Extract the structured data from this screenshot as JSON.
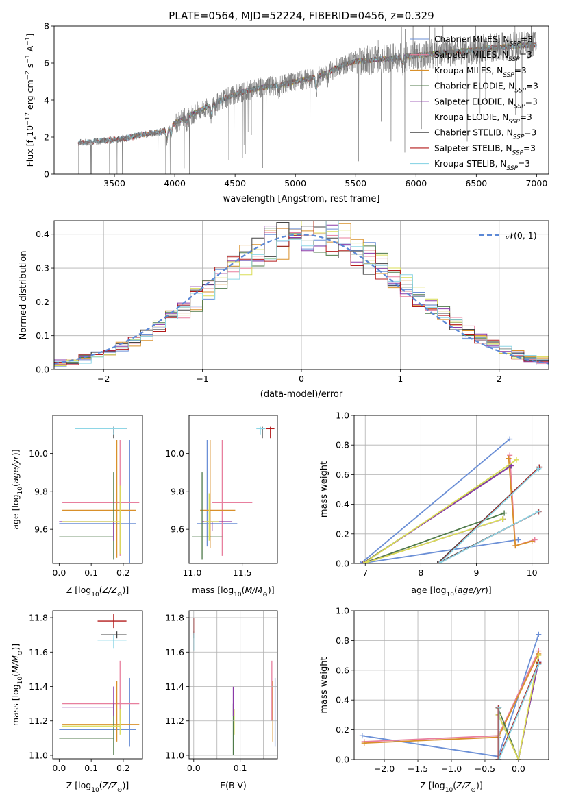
{
  "title": "PLATE=0564, MJD=52224, FIBERID=0456, z=0.329",
  "colors": {
    "Chabrier MILES": "#6b8fd6",
    "Salpeter MILES": "#e87f9e",
    "Kroupa MILES": "#d9902a",
    "Chabrier ELODIE": "#4f7a4a",
    "Salpeter ELODIE": "#8a3aa8",
    "Kroupa ELODIE": "#d9dd56",
    "Chabrier STELIB": "#444444",
    "Salpeter STELIB": "#b31b1b",
    "Kroupa STELIB": "#8ed6e6",
    "orange": "#e06a2c",
    "gauss": "#5b88d6"
  },
  "chart_data": [
    {
      "type": "line",
      "title": "PLATE=0564, MJD=52224, FIBERID=0456, z=0.329",
      "xlabel": "wavelength [Angstrom, rest frame]",
      "ylabel": "Flux [f_λ 10^-17 erg cm^-2 s^-1 A^-1]",
      "xlim": [
        3000,
        7100
      ],
      "ylim": [
        0,
        8
      ],
      "xticks": [
        "3500",
        "4000",
        "4500",
        "5000",
        "5500",
        "6000",
        "6500",
        "7000"
      ],
      "yticks": [
        "0",
        "2",
        "4",
        "6",
        "8"
      ],
      "legend_position": "upper-right",
      "legend": [
        {
          "model": "Chabrier MILES",
          "label": "Chabrier MILES, N",
          "sub": "SSP",
          "tail": "=3"
        },
        {
          "model": "Salpeter MILES",
          "label": "Salpeter MILES, N",
          "sub": "SSP",
          "tail": "=3"
        },
        {
          "model": "Kroupa MILES",
          "label": "Kroupa MILES, N",
          "sub": "SSP",
          "tail": "=3"
        },
        {
          "model": "Chabrier ELODIE",
          "label": "Chabrier ELODIE, N",
          "sub": "SSP",
          "tail": "=3"
        },
        {
          "model": "Salpeter ELODIE",
          "label": "Salpeter ELODIE, N",
          "sub": "SSP",
          "tail": "=3"
        },
        {
          "model": "Kroupa ELODIE",
          "label": "Kroupa ELODIE, N",
          "sub": "SSP",
          "tail": "=3"
        },
        {
          "model": "Chabrier STELIB",
          "label": "Chabrier STELIB, N",
          "sub": "SSP",
          "tail": "=3"
        },
        {
          "model": "Salpeter STELIB",
          "label": "Salpeter STELIB, N",
          "sub": "SSP",
          "tail": "=3"
        },
        {
          "model": "Kroupa STELIB",
          "label": "Kroupa STELIB, N",
          "sub": "SSP",
          "tail": "=3"
        }
      ],
      "data_trend": {
        "x": [
          3200,
          3300,
          3400,
          3500,
          3600,
          3700,
          3800,
          3900,
          4000,
          4100,
          4200,
          4300,
          4400,
          4500,
          4600,
          4700,
          4800,
          4900,
          5000,
          5100,
          5200,
          5300,
          5400,
          5500,
          5600,
          5700,
          5800,
          5900,
          6000,
          6200,
          6400,
          6600,
          6800,
          7000
        ],
        "y": [
          1.7,
          1.75,
          1.8,
          1.85,
          1.95,
          2.1,
          2.2,
          2.3,
          2.75,
          3.1,
          3.4,
          3.75,
          4.05,
          4.3,
          4.5,
          4.65,
          4.75,
          4.85,
          5.0,
          5.15,
          5.3,
          5.6,
          5.9,
          6.1,
          6.15,
          6.2,
          6.25,
          6.35,
          6.4,
          6.55,
          6.65,
          6.8,
          6.9,
          7.0
        ]
      },
      "model_start": {
        "Chabrier MILES": 3540,
        "Salpeter MILES": 3540,
        "Kroupa MILES": 3540,
        "Chabrier ELODIE": 3920,
        "Salpeter ELODIE": 3920,
        "Kroupa ELODIE": 3920,
        "Chabrier STELIB": 3200,
        "Salpeter STELIB": 3200,
        "Kroupa STELIB": 3200
      }
    },
    {
      "type": "step",
      "xlabel": "(data-model)/error",
      "ylabel": "Normed distribution",
      "xlim": [
        -2.5,
        2.5
      ],
      "ylim": [
        0,
        0.44
      ],
      "xticks": [
        "-2",
        "-1",
        "0",
        "1",
        "2"
      ],
      "yticks": [
        "0.0",
        "0.1",
        "0.2",
        "0.3",
        "0.4"
      ],
      "grid": true,
      "legend_position": "upper-right",
      "gauss_label": "𝒩(0, 1)",
      "bins": 40
    },
    {
      "type": "errorbar",
      "xlabel": "Z [log10(Z/Z⊙)]",
      "ylabel": "age  [log10(age/yr)]",
      "xlim": [
        -0.02,
        0.26
      ],
      "ylim": [
        9.42,
        10.2
      ],
      "xticks": [
        "0.0",
        "0.1",
        "0.2"
      ],
      "yticks": [
        "9.6",
        "9.8",
        "10.0"
      ],
      "points": [
        {
          "model": "Chabrier MILES",
          "x": 0.22,
          "xerr": [
            0.22,
            0.02
          ],
          "y": 9.63,
          "yerr": [
            0.25,
            0.44
          ]
        },
        {
          "model": "Salpeter MILES",
          "x": 0.19,
          "xerr": [
            0.18,
            0.06
          ],
          "y": 9.74,
          "yerr": [
            0.28,
            0.33
          ]
        },
        {
          "model": "Kroupa MILES",
          "x": 0.18,
          "xerr": [
            0.17,
            0.06
          ],
          "y": 9.7,
          "yerr": [
            0.25,
            0.37
          ]
        },
        {
          "model": "Chabrier ELODIE",
          "x": 0.17,
          "xerr": [
            0.17,
            0.0
          ],
          "y": 9.56,
          "yerr": [
            0.12,
            0.34
          ]
        },
        {
          "model": "Salpeter ELODIE",
          "x": 0.17,
          "xerr": [
            0.17,
            0.0
          ],
          "y": 9.64,
          "yerr": [
            0.1,
            0.0
          ]
        },
        {
          "model": "Kroupa ELODIE",
          "x": 0.19,
          "xerr": [
            0.18,
            0.0
          ],
          "y": 9.64,
          "yerr": [
            0.17,
            0.19
          ]
        },
        {
          "model": "Chabrier STELIB",
          "x": 0.17,
          "xerr": [
            0.12,
            0.04
          ],
          "y": 10.13,
          "yerr": [
            0.05,
            0.01
          ]
        },
        {
          "model": "Salpeter STELIB",
          "x": 0.17,
          "xerr": [
            0.12,
            0.04
          ],
          "y": 10.13,
          "yerr": [
            0.02,
            0.01
          ]
        },
        {
          "model": "Kroupa STELIB",
          "x": 0.17,
          "xerr": [
            0.12,
            0.04
          ],
          "y": 10.13,
          "yerr": [
            0.03,
            0.01
          ]
        }
      ]
    },
    {
      "type": "errorbar",
      "xlabel": "mass [log10(M/M⊙)]",
      "xlim": [
        10.97,
        11.85
      ],
      "ylim": [
        9.42,
        10.2
      ],
      "xticks": [
        "11.0",
        "11.5"
      ],
      "yticks": [
        "9.6",
        "9.8",
        "10.0"
      ],
      "points": [
        {
          "model": "Chabrier MILES",
          "x": 11.15,
          "xerr": [
            0.1,
            0.3
          ],
          "y": 9.63,
          "yerr": [
            0.12,
            0.44
          ]
        },
        {
          "model": "Salpeter MILES",
          "x": 11.3,
          "xerr": [
            0.1,
            0.3
          ],
          "y": 9.74,
          "yerr": [
            0.28,
            0.33
          ]
        },
        {
          "model": "Kroupa MILES",
          "x": 11.18,
          "xerr": [
            0.1,
            0.25
          ],
          "y": 9.7,
          "yerr": [
            0.2,
            0.37
          ]
        },
        {
          "model": "Chabrier ELODIE",
          "x": 11.1,
          "xerr": [
            0.1,
            0.2
          ],
          "y": 9.56,
          "yerr": [
            0.12,
            0.34
          ]
        },
        {
          "model": "Salpeter ELODIE",
          "x": 11.2,
          "xerr": [
            0.1,
            0.2
          ],
          "y": 9.64,
          "yerr": [
            0.05,
            0.0
          ]
        },
        {
          "model": "Kroupa ELODIE",
          "x": 11.17,
          "xerr": [
            0.05,
            0.1
          ],
          "y": 9.64,
          "yerr": [
            0.1,
            0.15
          ]
        },
        {
          "model": "Chabrier STELIB",
          "x": 11.7,
          "xerr": [
            0.02,
            0.02
          ],
          "y": 10.13,
          "yerr": [
            0.05,
            0.01
          ]
        },
        {
          "model": "Salpeter STELIB",
          "x": 11.78,
          "xerr": [
            0.04,
            0.04
          ],
          "y": 10.13,
          "yerr": [
            0.05,
            0.01
          ]
        },
        {
          "model": "Kroupa STELIB",
          "x": 11.68,
          "xerr": [
            0.04,
            0.05
          ],
          "y": 10.13,
          "yerr": [
            0.03,
            0.01
          ]
        }
      ]
    },
    {
      "type": "line",
      "xlabel": "age  [log10(age/yr)]",
      "ylabel": "mass weight",
      "xlim": [
        6.8,
        10.3
      ],
      "ylim": [
        0,
        1
      ],
      "xticks": [
        "7",
        "8",
        "9",
        "10"
      ],
      "yticks": [
        "0.0",
        "0.2",
        "0.4",
        "0.6",
        "0.8",
        "1.0"
      ],
      "grid": true,
      "series": [
        {
          "model": "Chabrier MILES",
          "x": [
            9.6,
            6.92,
            9.75
          ],
          "y": [
            0.84,
            0.0,
            0.16
          ]
        },
        {
          "model": "Salpeter MILES",
          "x": [
            9.6,
            9.7,
            10.05
          ],
          "y": [
            0.73,
            0.12,
            0.16
          ]
        },
        {
          "model": "Kroupa MILES",
          "x": [
            9.58,
            9.7,
            10.0
          ],
          "y": [
            0.71,
            0.12,
            0.15
          ]
        },
        {
          "model": "Chabrier ELODIE",
          "x": [
            9.62,
            6.95,
            9.5
          ],
          "y": [
            0.66,
            0.0,
            0.34
          ]
        },
        {
          "model": "Salpeter ELODIE",
          "x": [
            9.63,
            6.96,
            9.48
          ],
          "y": [
            0.66,
            0.0,
            0.3
          ]
        },
        {
          "model": "Kroupa ELODIE",
          "x": [
            9.72,
            6.97,
            9.47
          ],
          "y": [
            0.7,
            0.0,
            0.3
          ]
        },
        {
          "model": "Chabrier STELIB",
          "x": [
            10.13,
            8.3,
            10.12
          ],
          "y": [
            0.65,
            0.0,
            0.35
          ]
        },
        {
          "model": "Salpeter STELIB",
          "x": [
            10.13,
            8.32,
            10.12
          ],
          "y": [
            0.65,
            0.0,
            0.35
          ]
        },
        {
          "model": "Kroupa STELIB",
          "x": [
            10.12,
            8.33,
            10.11
          ],
          "y": [
            0.64,
            0.0,
            0.35
          ]
        }
      ]
    },
    {
      "type": "errorbar",
      "xlabel": "Z [log10(Z/Z⊙)]",
      "ylabel": "mass [log10(M/M⊙)]",
      "xlim": [
        -0.02,
        0.26
      ],
      "ylim": [
        10.98,
        11.84
      ],
      "xticks": [
        "0.0",
        "0.1",
        "0.2"
      ],
      "yticks": [
        "11.0",
        "11.2",
        "11.4",
        "11.6",
        "11.8"
      ],
      "points": [
        {
          "model": "Chabrier MILES",
          "x": 0.22,
          "xerr": [
            0.22,
            0.02
          ],
          "y": 11.15,
          "yerr": [
            0.1,
            0.3
          ]
        },
        {
          "model": "Salpeter MILES",
          "x": 0.19,
          "xerr": [
            0.18,
            0.06
          ],
          "y": 11.3,
          "yerr": [
            0.1,
            0.25
          ]
        },
        {
          "model": "Kroupa MILES",
          "x": 0.18,
          "xerr": [
            0.17,
            0.07
          ],
          "y": 11.18,
          "yerr": [
            0.1,
            0.25
          ]
        },
        {
          "model": "Chabrier ELODIE",
          "x": 0.17,
          "xerr": [
            0.17,
            0.0
          ],
          "y": 11.1,
          "yerr": [
            0.1,
            0.2
          ]
        },
        {
          "model": "Salpeter ELODIE",
          "x": 0.17,
          "xerr": [
            0.16,
            0.0
          ],
          "y": 11.28,
          "yerr": [
            0.05,
            0.12
          ]
        },
        {
          "model": "Kroupa ELODIE",
          "x": 0.19,
          "xerr": [
            0.18,
            0.0
          ],
          "y": 11.17,
          "yerr": [
            0.05,
            0.1
          ]
        },
        {
          "model": "Chabrier STELIB",
          "x": 0.18,
          "xerr": [
            0.05,
            0.03
          ],
          "y": 11.7,
          "yerr": [
            0.02,
            0.02
          ]
        },
        {
          "model": "Salpeter STELIB",
          "x": 0.17,
          "xerr": [
            0.05,
            0.04
          ],
          "y": 11.78,
          "yerr": [
            0.04,
            0.04
          ]
        },
        {
          "model": "Kroupa STELIB",
          "x": 0.17,
          "xerr": [
            0.05,
            0.04
          ],
          "y": 11.67,
          "yerr": [
            0.05,
            0.03
          ]
        }
      ]
    },
    {
      "type": "errorbar",
      "xlabel": "E(B-V)",
      "xlim": [
        -0.01,
        0.18
      ],
      "ylim": [
        10.98,
        11.84
      ],
      "xticks": [
        "0.0",
        "0.1"
      ],
      "yticks": [
        "11.0",
        "11.2",
        "11.4",
        "11.6",
        "11.8"
      ],
      "points": [
        {
          "model": "Chabrier MILES",
          "x": 0.175,
          "y": 11.15,
          "yerr": [
            0.1,
            0.3
          ]
        },
        {
          "model": "Salpeter MILES",
          "x": 0.168,
          "y": 11.3,
          "yerr": [
            0.1,
            0.25
          ]
        },
        {
          "model": "Kroupa MILES",
          "x": 0.17,
          "y": 11.18,
          "yerr": [
            0.1,
            0.25
          ]
        },
        {
          "model": "Chabrier ELODIE",
          "x": 0.085,
          "y": 11.1,
          "yerr": [
            0.1,
            0.2
          ]
        },
        {
          "model": "Salpeter ELODIE",
          "x": 0.085,
          "y": 11.28,
          "yerr": [
            0.05,
            0.12
          ]
        },
        {
          "model": "Kroupa ELODIE",
          "x": 0.087,
          "y": 11.17,
          "yerr": [
            0.05,
            0.1
          ]
        },
        {
          "model": "Chabrier STELIB",
          "x": 0.0,
          "y": 11.7,
          "yerr": [
            0.02,
            0.02
          ]
        },
        {
          "model": "Salpeter STELIB",
          "x": 0.0,
          "y": 11.75,
          "yerr": [
            0.05,
            0.05
          ]
        },
        {
          "model": "Kroupa STELIB",
          "x": 0.0,
          "y": 11.67,
          "yerr": [
            0.06,
            0.04
          ]
        }
      ]
    },
    {
      "type": "line",
      "xlabel": "Z [log10(Z/Z⊙)]",
      "ylabel": "mass weight",
      "xlim": [
        -2.45,
        0.45
      ],
      "ylim": [
        0,
        1
      ],
      "xticks": [
        "-2.0",
        "-1.5",
        "-1.0",
        "-0.5",
        "0.0"
      ],
      "yticks": [
        "0.0",
        "0.2",
        "0.4",
        "0.6",
        "0.8",
        "1.0"
      ],
      "grid": true,
      "series": [
        {
          "model": "Chabrier MILES",
          "x": [
            -2.33,
            -0.3,
            0.3
          ],
          "y": [
            0.16,
            0.02,
            0.84
          ]
        },
        {
          "model": "Salpeter MILES",
          "x": [
            -2.3,
            -0.3,
            0.3
          ],
          "y": [
            0.12,
            0.16,
            0.73
          ]
        },
        {
          "model": "Kroupa MILES",
          "x": [
            -2.3,
            -0.3,
            0.3
          ],
          "y": [
            0.11,
            0.15,
            0.71
          ]
        },
        {
          "model": "Chabrier ELODIE",
          "x": [
            -0.3,
            0.0,
            0.3
          ],
          "y": [
            0.34,
            0.0,
            0.66
          ]
        },
        {
          "model": "Salpeter ELODIE",
          "x": [
            -0.3,
            0.0,
            0.3
          ],
          "y": [
            0.3,
            0.0,
            0.66
          ]
        },
        {
          "model": "Kroupa ELODIE",
          "x": [
            -0.3,
            0.0,
            0.3
          ],
          "y": [
            0.3,
            0.0,
            0.7
          ]
        },
        {
          "model": "Chabrier STELIB",
          "x": [
            -0.3,
            -0.3,
            0.3
          ],
          "y": [
            0.35,
            0.0,
            0.65
          ]
        },
        {
          "model": "Salpeter STELIB",
          "x": [
            -0.3,
            -0.3,
            0.3
          ],
          "y": [
            0.35,
            0.0,
            0.65
          ]
        },
        {
          "model": "Kroupa STELIB",
          "x": [
            -0.29,
            -0.29,
            0.3
          ],
          "y": [
            0.35,
            0.0,
            0.64
          ]
        }
      ]
    }
  ]
}
